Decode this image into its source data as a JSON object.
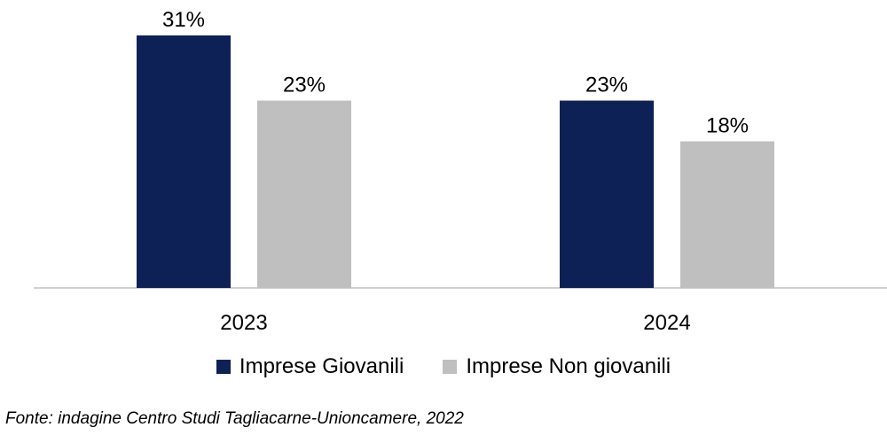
{
  "chart_data": {
    "type": "bar",
    "categories": [
      "2023",
      "2024"
    ],
    "series": [
      {
        "name": "Imprese Giovanili",
        "values": [
          31,
          23
        ],
        "labels": [
          "31%",
          "23%"
        ],
        "color": "#0e2157"
      },
      {
        "name": "Imprese Non giovanili",
        "values": [
          23,
          18
        ],
        "labels": [
          "23%",
          "18%"
        ],
        "color": "#bfbfbf"
      }
    ],
    "ylim": [
      0,
      31
    ],
    "grid": false,
    "legend_position": "bottom",
    "axis_color": "#bfbfbf"
  },
  "source": "Fonte: indagine Centro Studi Tagliacarne-Unioncamere, 2022"
}
